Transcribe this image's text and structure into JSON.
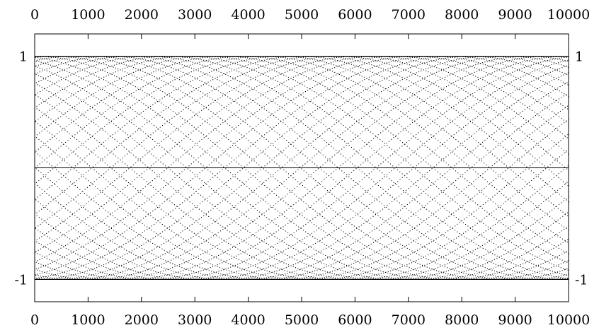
{
  "chart_data": {
    "type": "scatter",
    "title": "",
    "xlabel": "",
    "ylabel": "",
    "xlim": [
      0,
      10000
    ],
    "ylim": [
      -1.2,
      1.2
    ],
    "x_ticks": [
      0,
      1000,
      2000,
      3000,
      4000,
      5000,
      6000,
      7000,
      8000,
      9000,
      10000
    ],
    "x_tick_labels": [
      "0",
      "1000",
      "2000",
      "3000",
      "4000",
      "5000",
      "6000",
      "7000",
      "8000",
      "9000",
      "10000"
    ],
    "y_ticks": [
      -1,
      1
    ],
    "y_tick_labels": [
      "-1",
      "1"
    ],
    "x_axis_ticks_on": [
      "top",
      "bottom"
    ],
    "y_axis_ticks_on": [
      "left",
      "right"
    ],
    "grid": false,
    "reference_lines": [
      1,
      0,
      -1
    ],
    "point_color": "#000000",
    "series": [
      {
        "formula": "y = sin(n)",
        "n_start": 0,
        "n_end": 10000,
        "n_step": 1,
        "marker": "dot"
      }
    ]
  }
}
